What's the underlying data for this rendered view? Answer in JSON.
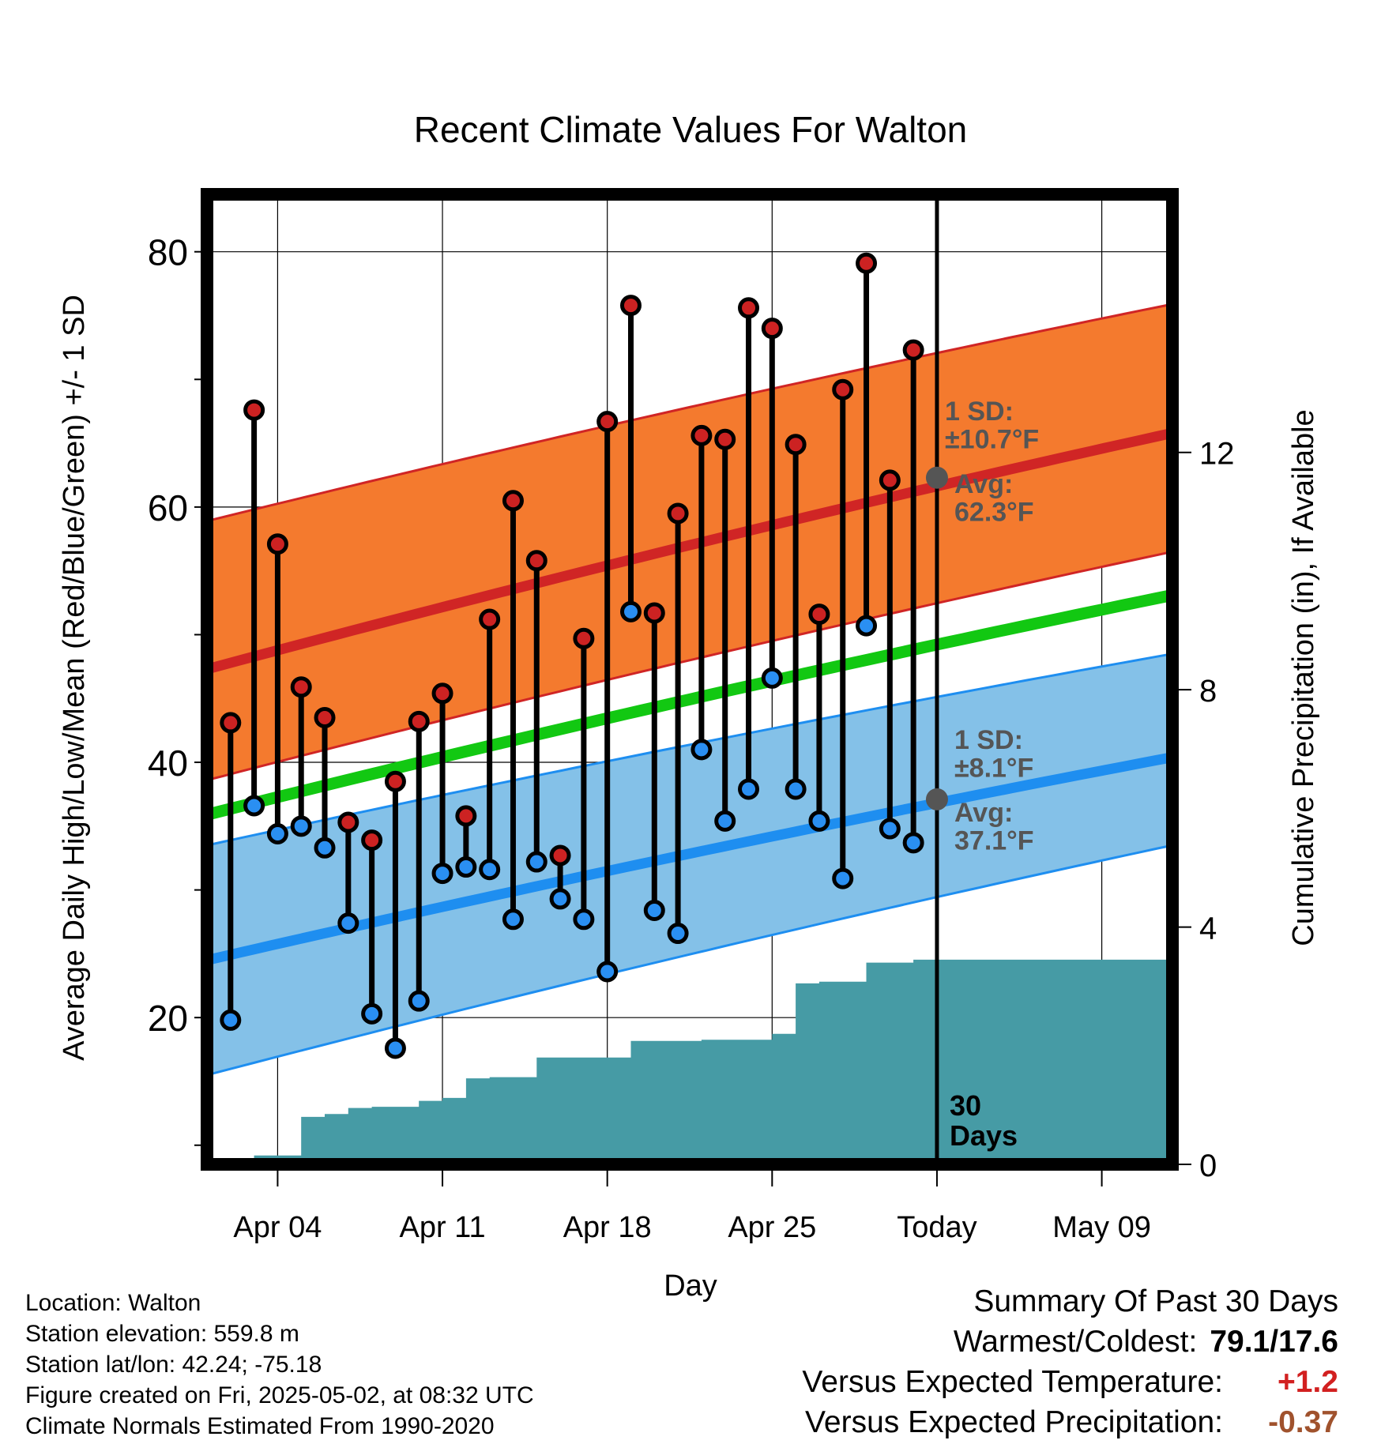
{
  "chart_data": {
    "type": "line",
    "title": "Recent Climate Values For Walton",
    "xlabel": "Day",
    "ylabel": "Average Daily High/Low/Mean (Red/Blue/Green) +/- 1 SD",
    "y2label": "Cumulative Precipitation (in), If Available",
    "ylim": [
      8.5,
      84.5
    ],
    "y_ticks": [
      20,
      40,
      60,
      80
    ],
    "y2lim": [
      0,
      16.35
    ],
    "y2_ticks": [
      0,
      4,
      8,
      12
    ],
    "xlim": [
      "2025-04-01",
      "2025-05-12"
    ],
    "x_ticks": [
      "Apr 04",
      "Apr 11",
      "Apr 18",
      "Apr 25",
      "Today",
      "May 09"
    ],
    "x_tick_dates": [
      "2025-04-04",
      "2025-04-11",
      "2025-04-18",
      "2025-04-25",
      "2025-05-02",
      "2025-05-09"
    ],
    "grid": true,
    "today": "2025-05-02",
    "days_label": [
      "30",
      "Days"
    ],
    "normal_high": {
      "mean": {
        "start": 47.3,
        "end": 65.8
      },
      "upper": {
        "start": 58.9,
        "end": 75.9
      },
      "lower": {
        "start": 38.6,
        "end": 56.5
      },
      "sd_label": [
        "1 SD:",
        "±10.7°F"
      ],
      "avg_label": [
        "Avg:",
        "62.3°F"
      ],
      "today_avg": 62.3
    },
    "normal_low": {
      "mean": {
        "start": 24.5,
        "end": 40.4
      },
      "upper": {
        "start": 33.5,
        "end": 48.5
      },
      "lower": {
        "start": 15.5,
        "end": 33.5
      },
      "sd_label": [
        "1 SD:",
        "±8.1°F"
      ],
      "avg_label": [
        "Avg:",
        "37.1°F"
      ],
      "today_avg": 37.1
    },
    "normal_mean": {
      "start": 35.9,
      "end": 53.1
    },
    "series": [
      {
        "name": "High",
        "dates": [
          "2025-04-02",
          "2025-04-03",
          "2025-04-04",
          "2025-04-05",
          "2025-04-06",
          "2025-04-07",
          "2025-04-08",
          "2025-04-09",
          "2025-04-10",
          "2025-04-11",
          "2025-04-12",
          "2025-04-13",
          "2025-04-14",
          "2025-04-15",
          "2025-04-16",
          "2025-04-17",
          "2025-04-18",
          "2025-04-19",
          "2025-04-20",
          "2025-04-21",
          "2025-04-22",
          "2025-04-23",
          "2025-04-24",
          "2025-04-25",
          "2025-04-26",
          "2025-04-27",
          "2025-04-28",
          "2025-04-29",
          "2025-04-30",
          "2025-05-01"
        ],
        "values": [
          43.1,
          67.6,
          57.1,
          45.9,
          43.5,
          35.3,
          33.9,
          38.5,
          43.2,
          45.4,
          35.8,
          51.2,
          60.5,
          55.8,
          32.7,
          49.7,
          66.7,
          75.8,
          51.7,
          59.5,
          65.6,
          65.3,
          75.6,
          74.0,
          64.9,
          51.6,
          69.2,
          79.1,
          62.1,
          72.3
        ]
      },
      {
        "name": "Low",
        "dates": [
          "2025-04-02",
          "2025-04-03",
          "2025-04-04",
          "2025-04-05",
          "2025-04-06",
          "2025-04-07",
          "2025-04-08",
          "2025-04-09",
          "2025-04-10",
          "2025-04-11",
          "2025-04-12",
          "2025-04-13",
          "2025-04-14",
          "2025-04-15",
          "2025-04-16",
          "2025-04-17",
          "2025-04-18",
          "2025-04-19",
          "2025-04-20",
          "2025-04-21",
          "2025-04-22",
          "2025-04-23",
          "2025-04-24",
          "2025-04-25",
          "2025-04-26",
          "2025-04-27",
          "2025-04-28",
          "2025-04-29",
          "2025-04-30",
          "2025-05-01"
        ],
        "values": [
          19.8,
          36.6,
          34.4,
          35.0,
          33.3,
          27.4,
          20.3,
          17.6,
          21.3,
          31.3,
          31.8,
          31.6,
          27.7,
          32.2,
          29.3,
          27.7,
          23.6,
          51.8,
          28.4,
          26.6,
          41.0,
          35.4,
          37.9,
          46.6,
          37.9,
          35.4,
          30.9,
          50.7,
          34.8,
          33.7
        ]
      }
    ],
    "precip_cumulative": {
      "dates": [
        "2025-04-01",
        "2025-04-02",
        "2025-04-03",
        "2025-04-04",
        "2025-04-05",
        "2025-04-06",
        "2025-04-07",
        "2025-04-08",
        "2025-04-09",
        "2025-04-10",
        "2025-04-11",
        "2025-04-12",
        "2025-04-13",
        "2025-04-14",
        "2025-04-15",
        "2025-04-16",
        "2025-04-17",
        "2025-04-18",
        "2025-04-19",
        "2025-04-20",
        "2025-04-21",
        "2025-04-22",
        "2025-04-23",
        "2025-04-24",
        "2025-04-25",
        "2025-04-26",
        "2025-04-27",
        "2025-04-28",
        "2025-04-29",
        "2025-04-30",
        "2025-05-01",
        "2025-05-12"
      ],
      "values": [
        0.0,
        0.0,
        0.15,
        0.15,
        0.8,
        0.85,
        0.95,
        0.97,
        0.97,
        1.07,
        1.12,
        1.45,
        1.47,
        1.47,
        1.8,
        1.8,
        1.8,
        1.8,
        2.08,
        2.08,
        2.08,
        2.1,
        2.1,
        2.1,
        2.2,
        3.05,
        3.08,
        3.08,
        3.4,
        3.4,
        3.45,
        3.45
      ]
    }
  },
  "station": {
    "location": "Location: Walton",
    "elevation": "Station elevation: 559.8 m",
    "latlon": "Station lat/lon: 42.24; -75.18",
    "created": "Figure created on Fri, 2025-05-02, at 08:32 UTC",
    "normals": "Climate Normals Estimated From 1990-2020"
  },
  "summary": {
    "title": "Summary Of Past 30 Days",
    "warm_cold_label": "Warmest/Coldest:",
    "warm_cold_value": "79.1/17.6",
    "temp_label": "Versus Expected Temperature:",
    "temp_value": "+1.2",
    "precip_label": "Versus Expected Precipitation:",
    "precip_value": "-0.37"
  },
  "colors": {
    "high_band": "#f47a2e",
    "high_line": "#d02525",
    "low_band": "#84c1e8",
    "low_line": "#1e8ef0",
    "mean_line": "#12c812",
    "precip_fill": "#469ba5",
    "high_point": "#cc2222",
    "low_point": "#2a8ff2",
    "avg_text": "#555555",
    "temp_value": "#d22020",
    "precip_value": "#a0522d"
  }
}
